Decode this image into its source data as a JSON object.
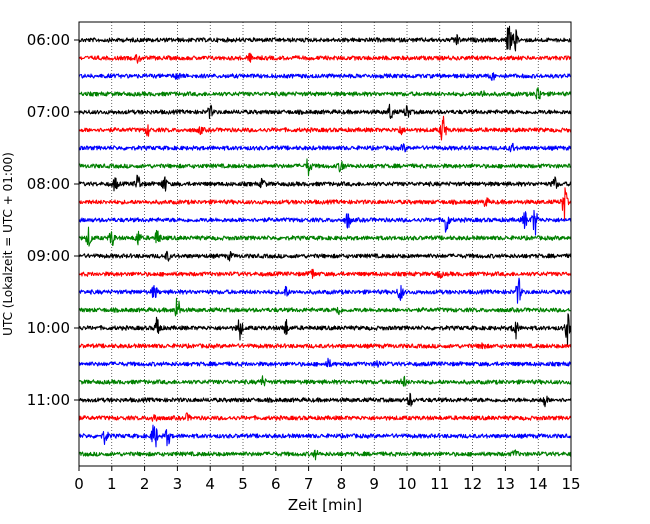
{
  "chart_data": {
    "type": "line",
    "subtype": "seismogram-helicorder",
    "xlabel": "Zeit  [min]",
    "ylabel": "UTC (Lokalzeit = UTC + 01:00)",
    "xlim": [
      0,
      15
    ],
    "x_ticks": [
      "0",
      "1",
      "2",
      "3",
      "4",
      "5",
      "6",
      "7",
      "8",
      "9",
      "10",
      "11",
      "12",
      "13",
      "14",
      "15"
    ],
    "y_tick_labels": [
      "06:00",
      "07:00",
      "08:00",
      "09:00",
      "10:00",
      "11:00"
    ],
    "grid": "vertical dotted at each minute",
    "trace_interval_minutes": 15,
    "trace_colors": [
      "#000000",
      "#ff0000",
      "#0000ff",
      "#008000"
    ],
    "traces": [
      {
        "start": "06:00",
        "color": "#000000",
        "events": [
          {
            "t": 11.5,
            "a": 0.35
          },
          {
            "t": 13.1,
            "a": 0.9
          },
          {
            "t": 13.3,
            "a": 0.6
          }
        ]
      },
      {
        "start": "06:15",
        "color": "#ff0000",
        "events": [
          {
            "t": 1.8,
            "a": 0.25
          },
          {
            "t": 5.2,
            "a": 0.2
          }
        ]
      },
      {
        "start": "06:30",
        "color": "#0000ff",
        "events": [
          {
            "t": 3.0,
            "a": 0.2
          },
          {
            "t": 12.6,
            "a": 0.2
          }
        ]
      },
      {
        "start": "06:45",
        "color": "#008000",
        "events": [
          {
            "t": 14.0,
            "a": 0.5
          },
          {
            "t": 12.3,
            "a": 0.2
          }
        ]
      },
      {
        "start": "07:00",
        "color": "#000000",
        "events": [
          {
            "t": 4.0,
            "a": 0.35
          },
          {
            "t": 9.5,
            "a": 0.5
          },
          {
            "t": 10.0,
            "a": 0.4
          }
        ]
      },
      {
        "start": "07:15",
        "color": "#ff0000",
        "events": [
          {
            "t": 2.1,
            "a": 0.3
          },
          {
            "t": 3.7,
            "a": 0.2
          },
          {
            "t": 9.8,
            "a": 0.25
          },
          {
            "t": 11.1,
            "a": 1.0
          }
        ]
      },
      {
        "start": "07:30",
        "color": "#0000ff",
        "events": [
          {
            "t": 9.9,
            "a": 0.2
          },
          {
            "t": 13.2,
            "a": 0.25
          }
        ]
      },
      {
        "start": "07:45",
        "color": "#008000",
        "events": [
          {
            "t": 7.0,
            "a": 0.55
          },
          {
            "t": 8.0,
            "a": 0.45
          }
        ]
      },
      {
        "start": "08:00",
        "color": "#000000",
        "events": [
          {
            "t": 1.1,
            "a": 0.4
          },
          {
            "t": 1.8,
            "a": 0.6
          },
          {
            "t": 2.6,
            "a": 0.5
          },
          {
            "t": 5.6,
            "a": 0.3
          },
          {
            "t": 14.5,
            "a": 0.4
          }
        ]
      },
      {
        "start": "08:15",
        "color": "#ff0000",
        "events": [
          {
            "t": 12.4,
            "a": 0.25
          },
          {
            "t": 14.8,
            "a": 1.0
          }
        ]
      },
      {
        "start": "08:30",
        "color": "#0000ff",
        "events": [
          {
            "t": 8.2,
            "a": 0.5
          },
          {
            "t": 11.2,
            "a": 0.9
          },
          {
            "t": 13.6,
            "a": 0.5
          },
          {
            "t": 13.9,
            "a": 0.9
          }
        ]
      },
      {
        "start": "08:45",
        "color": "#008000",
        "events": [
          {
            "t": 0.3,
            "a": 0.6
          },
          {
            "t": 1.0,
            "a": 0.5
          },
          {
            "t": 1.8,
            "a": 0.45
          },
          {
            "t": 2.4,
            "a": 0.55
          }
        ]
      },
      {
        "start": "09:00",
        "color": "#000000",
        "events": [
          {
            "t": 2.7,
            "a": 0.25
          },
          {
            "t": 4.6,
            "a": 0.2
          }
        ]
      },
      {
        "start": "09:15",
        "color": "#ff0000",
        "events": [
          {
            "t": 7.1,
            "a": 0.3
          },
          {
            "t": 11.0,
            "a": 0.2
          }
        ]
      },
      {
        "start": "09:30",
        "color": "#0000ff",
        "events": [
          {
            "t": 2.3,
            "a": 0.45
          },
          {
            "t": 6.3,
            "a": 0.35
          },
          {
            "t": 9.8,
            "a": 0.55
          },
          {
            "t": 13.4,
            "a": 0.8
          }
        ]
      },
      {
        "start": "09:45",
        "color": "#008000",
        "events": [
          {
            "t": 3.0,
            "a": 0.8
          },
          {
            "t": 7.9,
            "a": 0.3
          }
        ]
      },
      {
        "start": "10:00",
        "color": "#000000",
        "events": [
          {
            "t": 2.4,
            "a": 0.8
          },
          {
            "t": 4.9,
            "a": 0.7
          },
          {
            "t": 6.3,
            "a": 0.5
          },
          {
            "t": 13.3,
            "a": 0.65
          },
          {
            "t": 14.9,
            "a": 1.0
          }
        ]
      },
      {
        "start": "10:15",
        "color": "#ff0000",
        "events": [
          {
            "t": 12.3,
            "a": 0.25
          }
        ]
      },
      {
        "start": "10:30",
        "color": "#0000ff",
        "events": [
          {
            "t": 7.6,
            "a": 0.25
          },
          {
            "t": 9.1,
            "a": 0.2
          }
        ]
      },
      {
        "start": "10:45",
        "color": "#008000",
        "events": [
          {
            "t": 5.6,
            "a": 0.3
          },
          {
            "t": 9.9,
            "a": 0.3
          }
        ]
      },
      {
        "start": "11:00",
        "color": "#000000",
        "events": [
          {
            "t": 10.1,
            "a": 0.4
          },
          {
            "t": 14.2,
            "a": 0.35
          }
        ]
      },
      {
        "start": "11:15",
        "color": "#ff0000",
        "events": [
          {
            "t": 2.3,
            "a": 0.3
          },
          {
            "t": 3.3,
            "a": 0.2
          }
        ]
      },
      {
        "start": "11:30",
        "color": "#0000ff",
        "events": [
          {
            "t": 0.8,
            "a": 0.45
          },
          {
            "t": 2.3,
            "a": 1.0
          },
          {
            "t": 2.7,
            "a": 0.55
          }
        ]
      },
      {
        "start": "11:45",
        "color": "#008000",
        "events": [
          {
            "t": 7.2,
            "a": 0.25
          },
          {
            "t": 13.3,
            "a": 0.2
          }
        ]
      }
    ]
  }
}
